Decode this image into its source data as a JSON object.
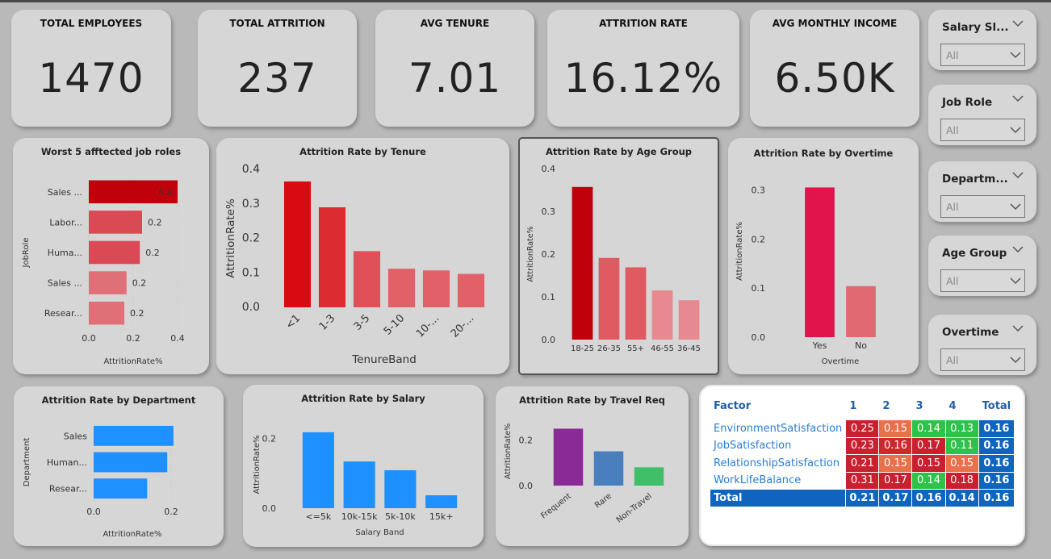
{
  "kpis": [
    {
      "title": "TOTAL EMPLOYEES",
      "value": "1470"
    },
    {
      "title": "TOTAL ATTRITION",
      "value": "237"
    },
    {
      "title": "AVG TENURE",
      "value": "7.01"
    },
    {
      "title": "ATTRITION RATE",
      "value": "16.12%"
    },
    {
      "title": "AVG MONTHLY INCOME",
      "value": "6.50K"
    }
  ],
  "slicers": [
    {
      "title": "Salary Sl...",
      "value": "All"
    },
    {
      "title": "Job Role",
      "value": "All"
    },
    {
      "title": "Departm...",
      "value": "All"
    },
    {
      "title": "Age Group",
      "value": "All"
    },
    {
      "title": "Overtime",
      "value": "All"
    }
  ],
  "titles": {
    "worst": "Worst 5 afftected job roles",
    "tenure": "Attrition Rate by Tenure",
    "age": "Attrition Rate by Age Group",
    "overtime": "Attrition Rate by Overtime",
    "department": "Attrition Rate by Department",
    "salary": "Attrition Rate by Salary",
    "travel": "Attrition Rate by Travel Req"
  },
  "chart_data": [
    {
      "id": "worst",
      "type": "bar",
      "orientation": "horizontal",
      "title": "Worst 5 afftected job roles",
      "xlabel": "AttritionRate%",
      "ylabel": "JobRole",
      "categories": [
        "Sales ...",
        "Labor...",
        "Huma...",
        "Sales ...",
        "Resear..."
      ],
      "values": [
        0.4,
        0.24,
        0.23,
        0.17,
        0.16
      ],
      "data_labels": [
        "0.4",
        "0.2",
        "0.2",
        "0.2",
        "0.2"
      ],
      "xticks": [
        "0.0",
        "0.2",
        "0.4"
      ],
      "xlim": [
        0,
        0.4
      ],
      "colors": [
        "#c0000a",
        "#d94a55",
        "#d94a55",
        "#e07078",
        "#e07078"
      ]
    },
    {
      "id": "tenure",
      "type": "bar",
      "title": "Attrition Rate by Tenure",
      "xlabel": "TenureBand",
      "ylabel": "AttritionRate%",
      "categories": [
        "<1",
        "1-3",
        "3-5",
        "5-10",
        "10-...",
        "20-..."
      ],
      "values": [
        0.365,
        0.29,
        0.163,
        0.112,
        0.107,
        0.097
      ],
      "yticks": [
        "0.0",
        "0.1",
        "0.2",
        "0.3",
        "0.4"
      ],
      "ylim": [
        0,
        0.4
      ],
      "colors": [
        "#d80c10",
        "#db2a30",
        "#e05058",
        "#e26068",
        "#e26068",
        "#e26068"
      ]
    },
    {
      "id": "age",
      "type": "bar",
      "title": "Attrition Rate by Age Group",
      "xlabel": "",
      "ylabel": "AttritionRate%",
      "categories": [
        "18-25",
        "26-35",
        "55+",
        "46-55",
        "36-45"
      ],
      "values": [
        0.357,
        0.191,
        0.169,
        0.115,
        0.092
      ],
      "yticks": [
        "0.0",
        "0.1",
        "0.2",
        "0.3",
        "0.4"
      ],
      "ylim": [
        0,
        0.4
      ],
      "colors": [
        "#c0000a",
        "#e05a62",
        "#e05a62",
        "#e88890",
        "#e88890"
      ]
    },
    {
      "id": "overtime",
      "type": "bar",
      "title": "Attrition Rate by Overtime",
      "xlabel": "Overtime",
      "ylabel": "AttritionRate%",
      "categories": [
        "Yes",
        "No"
      ],
      "values": [
        0.305,
        0.104
      ],
      "yticks": [
        "0.0",
        "0.1",
        "0.2",
        "0.3"
      ],
      "ylim": [
        0,
        0.35
      ],
      "colors": [
        "#e0134a",
        "#e06a72"
      ]
    },
    {
      "id": "department",
      "type": "bar",
      "orientation": "horizontal",
      "title": "Attrition Rate by Department",
      "xlabel": "AttritionRate%",
      "ylabel": "Department",
      "categories": [
        "Sales",
        "Human...",
        "Resear..."
      ],
      "values": [
        0.206,
        0.19,
        0.138
      ],
      "xticks": [
        "0.0",
        "0.2"
      ],
      "xlim": [
        0,
        0.2
      ],
      "colors": [
        "#1e90ff",
        "#1e90ff",
        "#1e90ff"
      ]
    },
    {
      "id": "salary",
      "type": "bar",
      "title": "Attrition Rate by Salary",
      "xlabel": "Salary Band",
      "ylabel": "AttritionRate%",
      "categories": [
        "<=5k",
        "10k-15k",
        "5k-10k",
        "15k+"
      ],
      "values": [
        0.218,
        0.134,
        0.109,
        0.037
      ],
      "yticks": [
        "0.0",
        "0.2"
      ],
      "ylim": [
        0,
        0.25
      ],
      "colors": [
        "#1e90ff",
        "#1e90ff",
        "#1e90ff",
        "#1e90ff"
      ]
    },
    {
      "id": "travel",
      "type": "bar",
      "title": "Attrition Rate by Travel Req",
      "xlabel": "",
      "ylabel": "AttritionRate%",
      "categories": [
        "Frequent",
        "Rare",
        "Non-Travel"
      ],
      "values": [
        0.249,
        0.15,
        0.08
      ],
      "yticks": [
        "0.0",
        "0.2"
      ],
      "ylim": [
        0,
        0.3
      ],
      "colors": [
        "#8a2a96",
        "#4a7fbe",
        "#3fbf68"
      ]
    },
    {
      "id": "matrix",
      "type": "table",
      "columns": [
        "Factor",
        "1",
        "2",
        "3",
        "4",
        "Total"
      ],
      "rows": [
        {
          "factor": "EnvironmentSatisfaction",
          "values": [
            "0.25",
            "0.15",
            "0.14",
            "0.13"
          ],
          "total": "0.16",
          "colors": [
            "#c8202e",
            "#e8704a",
            "#2fc24a",
            "#2fc24a"
          ]
        },
        {
          "factor": "JobSatisfaction",
          "values": [
            "0.23",
            "0.16",
            "0.17",
            "0.11"
          ],
          "total": "0.16",
          "colors": [
            "#c8202e",
            "#cc2a30",
            "#c8202e",
            "#2fc24a"
          ]
        },
        {
          "factor": "RelationshipSatisfaction",
          "values": [
            "0.21",
            "0.15",
            "0.15",
            "0.15"
          ],
          "total": "0.16",
          "colors": [
            "#c8202e",
            "#e8704a",
            "#c8202e",
            "#e8704a"
          ]
        },
        {
          "factor": "WorkLifeBalance",
          "values": [
            "0.31",
            "0.17",
            "0.14",
            "0.18"
          ],
          "total": "0.16",
          "colors": [
            "#c8202e",
            "#c8202e",
            "#2fc24a",
            "#c8202e"
          ]
        }
      ],
      "total_row": {
        "label": "Total",
        "values": [
          "0.21",
          "0.17",
          "0.16",
          "0.14"
        ],
        "total": "0.16"
      }
    }
  ]
}
